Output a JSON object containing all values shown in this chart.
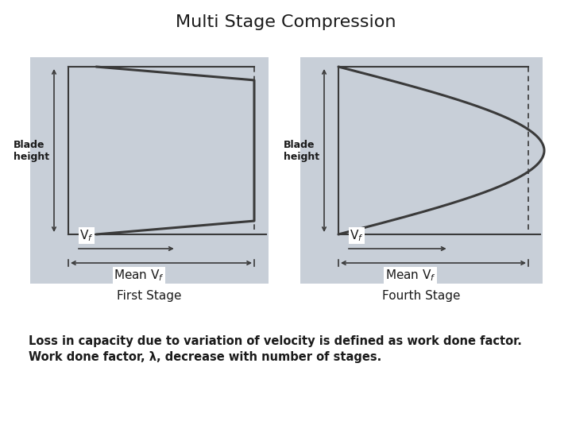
{
  "title": "Multi Stage Compression",
  "title_fontsize": 16,
  "background_color": "#ffffff",
  "diagram_bg": "#c8cfd8",
  "line_color": "#3a3a3a",
  "text_color": "#1a1a1a",
  "label1": "First Stage",
  "label2": "Fourth Stage",
  "blade_height_label": "Blade\nheight",
  "vf_label": "V$_f$",
  "mean_vf_label": "Mean V$_f$",
  "body_line1": "Loss in capacity due to variation of velocity is defined as work done factor.",
  "body_line2": "Work done factor, λ, decrease with number of stages.",
  "body_fontsize": 10.5,
  "label_fontsize": 11,
  "small_fontsize": 9
}
